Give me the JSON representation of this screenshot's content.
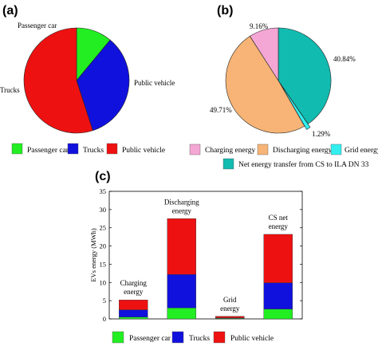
{
  "colors": {
    "passenger_car": "#22ee22",
    "trucks": "#1111dd",
    "public_vehicle": "#ee1111",
    "charging_energy": "#f4a6d4",
    "discharging_energy": "#f7b476",
    "grid_energy": "#33eeee",
    "net_energy": "#11bbb0"
  },
  "chart_data": [
    {
      "type": "pie",
      "panel_label": "(a)",
      "slices": [
        {
          "key": "passenger_car",
          "label": "Passenger car",
          "value": 11
        },
        {
          "key": "trucks",
          "label": "Trucks",
          "value": 34
        },
        {
          "key": "public_vehicle",
          "label": "Public vehicle",
          "value": 55
        }
      ],
      "legend": [
        "Passenger car",
        "Trucks",
        "Public vehicle"
      ],
      "legend_position": "bottom"
    },
    {
      "type": "pie",
      "panel_label": "(b)",
      "slices": [
        {
          "key": "net_energy",
          "value": 40.84,
          "label": "40.84%"
        },
        {
          "key": "grid_energy",
          "value": 1.29,
          "label": "1.29%"
        },
        {
          "key": "discharging_energy",
          "value": 49.71,
          "label": "49.71%"
        },
        {
          "key": "charging_energy",
          "value": 9.16,
          "label": "9.16%"
        }
      ],
      "legend": [
        "Charging energy",
        "Discharging energy",
        "Grid energy",
        "Net energy transfer from CS to ILA DN 33"
      ],
      "legend_position": "bottom"
    },
    {
      "type": "bar",
      "stacked": true,
      "panel_label": "(c)",
      "ylabel": "EVs energy (MWh)",
      "ylim": [
        0,
        35
      ],
      "yticks": [
        0,
        5,
        10,
        15,
        20,
        25,
        30,
        35
      ],
      "categories": [
        "Charging energy",
        "Discharging energy",
        "Grid energy",
        "CS net energy"
      ],
      "category_labels": [
        [
          "Charging",
          "energy"
        ],
        [
          "Discharging",
          "energy"
        ],
        [
          "Grid",
          "energy"
        ],
        [
          "CS net",
          "energy"
        ]
      ],
      "series": [
        {
          "key": "passenger_car",
          "name": "Passenger car",
          "values": [
            0.5,
            3.0,
            0.15,
            2.7
          ]
        },
        {
          "key": "trucks",
          "name": "Trucks",
          "values": [
            2.0,
            9.2,
            0.15,
            7.2
          ]
        },
        {
          "key": "public_vehicle",
          "name": "Public vehicle",
          "values": [
            2.7,
            15.3,
            0.4,
            13.3
          ]
        }
      ],
      "legend_position": "bottom"
    }
  ]
}
